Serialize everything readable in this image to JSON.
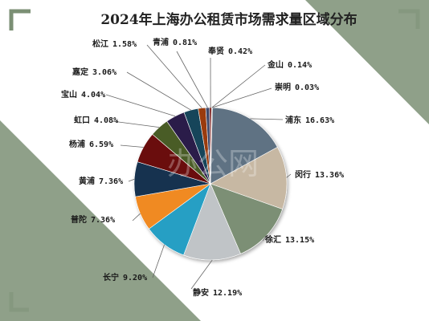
{
  "chart_data": {
    "type": "pie",
    "title": "2024年上海办公租赁市场需求量区域分布",
    "watermark": "办公网",
    "slices": [
      {
        "label": "浦东",
        "value": 16.63,
        "display": "16.63%",
        "color": "#5f7283"
      },
      {
        "label": "闵行",
        "value": 13.36,
        "display": "13.36%",
        "color": "#c7b8a3"
      },
      {
        "label": "徐汇",
        "value": 13.15,
        "display": "13.15%",
        "color": "#7b8f74"
      },
      {
        "label": "静安",
        "value": 12.19,
        "display": "12.19%",
        "color": "#c0c4c7"
      },
      {
        "label": "长宁",
        "value": 9.2,
        "display": "9.20%",
        "color": "#259fc4"
      },
      {
        "label": "普陀",
        "value": 7.36,
        "display": "7.36%",
        "color": "#f08a24"
      },
      {
        "label": "黄浦",
        "value": 7.36,
        "display": "7.36%",
        "color": "#13314f"
      },
      {
        "label": "杨浦",
        "value": 6.59,
        "display": "6.59%",
        "color": "#6a0e0e"
      },
      {
        "label": "虹口",
        "value": 4.08,
        "display": "4.08%",
        "color": "#4a5b27"
      },
      {
        "label": "宝山",
        "value": 4.04,
        "display": "4.04%",
        "color": "#2c1a4a"
      },
      {
        "label": "嘉定",
        "value": 3.06,
        "display": "3.06%",
        "color": "#19455a"
      },
      {
        "label": "松江",
        "value": 1.58,
        "display": "1.58%",
        "color": "#9a3a0c"
      },
      {
        "label": "青浦",
        "value": 0.81,
        "display": "0.81%",
        "color": "#404a6a"
      },
      {
        "label": "奉贤",
        "value": 0.42,
        "display": "0.42%",
        "color": "#7a1a1a"
      },
      {
        "label": "金山",
        "value": 0.14,
        "display": "0.14%",
        "color": "#5a7050"
      },
      {
        "label": "崇明",
        "value": 0.03,
        "display": "0.03%",
        "color": "#555555"
      }
    ]
  },
  "theme": {
    "corner_triangle_color": "#7b8f74",
    "corner_bracket_color": "#7b8f74"
  }
}
